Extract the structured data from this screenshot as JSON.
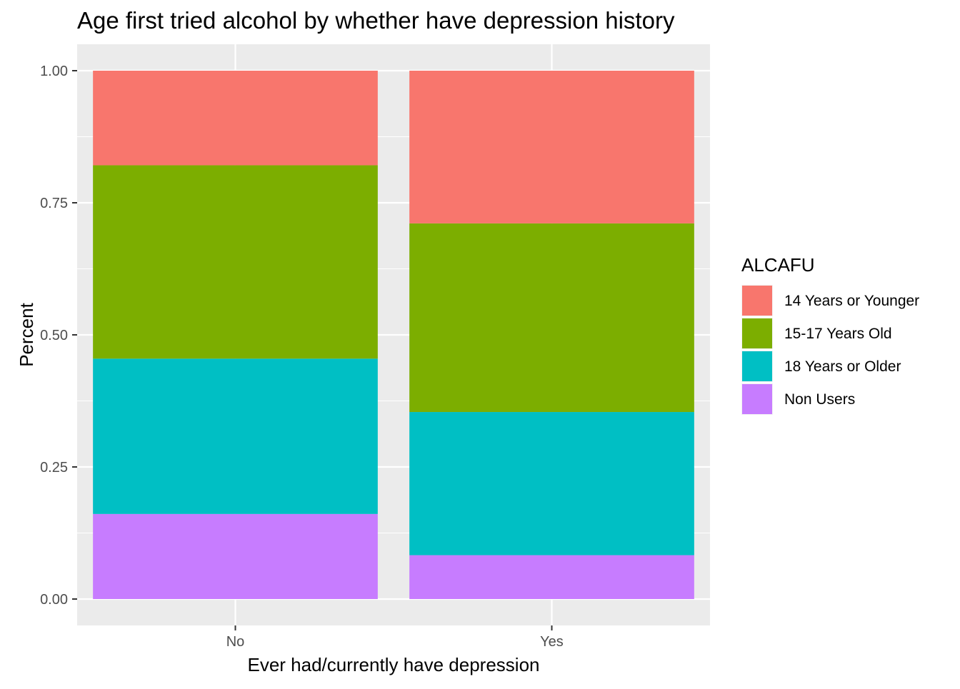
{
  "chart_data": {
    "type": "bar",
    "stacked": true,
    "title": "Age first tried alcohol by whether have depression history",
    "xlabel": "Ever had/currently have depression",
    "ylabel": "Percent",
    "ylim": [
      0,
      1
    ],
    "yticks": [
      "0.00",
      "0.25",
      "0.50",
      "0.75",
      "1.00"
    ],
    "categories": [
      "No",
      "Yes"
    ],
    "legend": {
      "title": "ALCAFU",
      "position": "right"
    },
    "grid": true,
    "series": [
      {
        "name": "14 Years or Younger",
        "color": "#F8766D",
        "values": [
          0.179,
          0.289
        ]
      },
      {
        "name": "15-17 Years Old",
        "color": "#7CAE00",
        "values": [
          0.366,
          0.357
        ]
      },
      {
        "name": "18 Years or Older",
        "color": "#00BFC4",
        "values": [
          0.294,
          0.271
        ]
      },
      {
        "name": "Non Users",
        "color": "#C77CFF",
        "values": [
          0.161,
          0.083
        ]
      }
    ]
  }
}
